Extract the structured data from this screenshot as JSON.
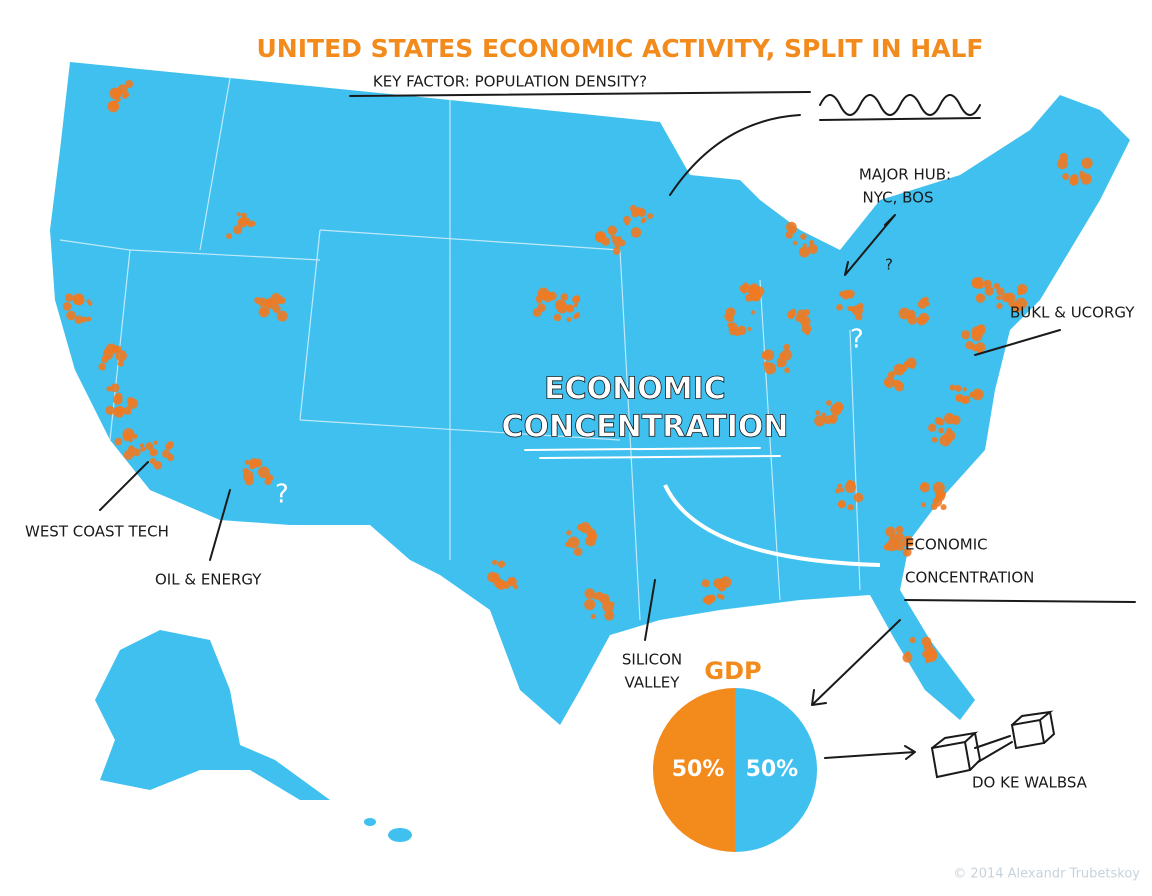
{
  "title": "UNITED STATES ECONOMIC ACTIVITY, SPLIT IN HALF",
  "subtitle": "KEY FACTOR: POPULATION DENSITY?",
  "annotations": {
    "center": [
      "ECONOMIC",
      "CONCENTRATION"
    ],
    "right": [
      "ECONOMIC",
      "CONCENTRATION"
    ],
    "major_hub": [
      "MAJOR HUB:",
      "NYC, BOS"
    ],
    "northeast": "BUKL & UCORGY",
    "west": "WEST COAST TECH",
    "oil": "OIL & ENERGY",
    "south": [
      "SILICON",
      "VALLEY"
    ],
    "boxes": "DO KE WALBSA",
    "questions": [
      "?",
      "?",
      "?"
    ]
  },
  "chart_data": {
    "type": "pie",
    "title": "GDP",
    "values": [
      50,
      50
    ],
    "value_labels": [
      "50%",
      "50%"
    ],
    "colors": [
      "#3fc0ee",
      "#f28a1c"
    ]
  },
  "credit": "© 2014 Alexandr Trubetskoy"
}
